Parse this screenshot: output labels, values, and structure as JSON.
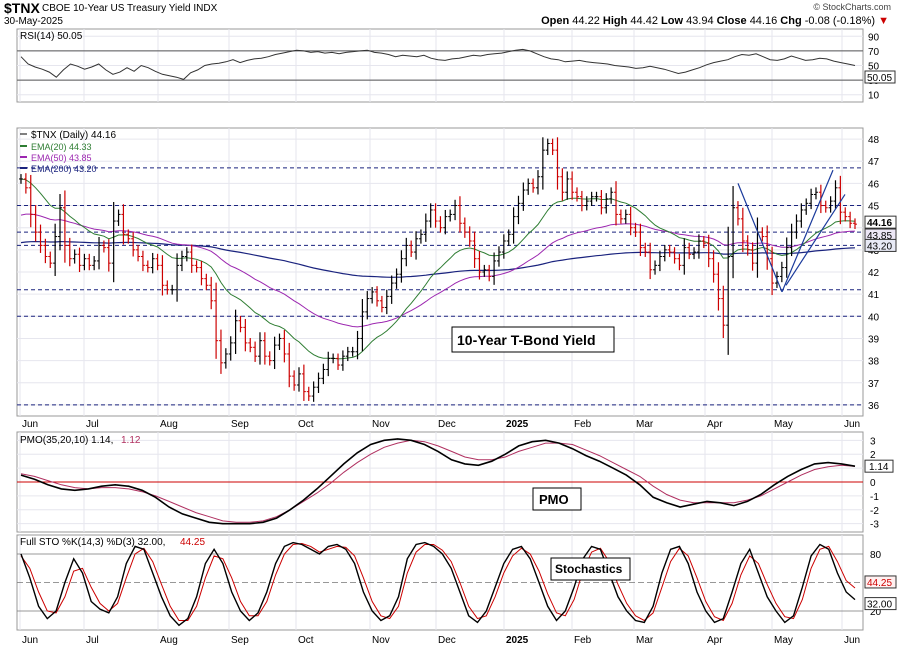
{
  "header": {
    "symbol": "$TNX",
    "name": "CBOE 10-Year US Treasury Yield INDX",
    "date": "30-May-2025",
    "credit": "© StockCharts.com",
    "open_label": "Open",
    "open": "44.22",
    "high_label": "High",
    "high": "44.42",
    "low_label": "Low",
    "low": "43.94",
    "close_label": "Close",
    "close": "44.16",
    "chg_label": "Chg",
    "chg": "-0.08 (-0.18%)",
    "chg_arrow": "▼"
  },
  "colors": {
    "background": "#ffffff",
    "grid": "#e6e6ee",
    "panel_border": "#999999",
    "up_bar": "#000000",
    "down_bar": "#cc0000",
    "ema20": "#2e7d32",
    "ema50": "#9c27b0",
    "ema200": "#1a237e",
    "trendline": "#1a3a9c",
    "pmo_signal": "#b03060",
    "zero_line": "#cc0000"
  },
  "chart_data": [
    {
      "type": "line",
      "panel": "rsi",
      "title": "RSI(14) 50.05",
      "y_ticks": [
        "90",
        "70",
        "50",
        "30",
        "10"
      ],
      "ylim": [
        0,
        100
      ],
      "reference_lines": [
        70,
        30
      ],
      "last_value_label": "50.05",
      "series": [
        {
          "name": "RSI(14)",
          "values": [
            62,
            52,
            48,
            45,
            41,
            34,
            44,
            52,
            49,
            45,
            48,
            52,
            44,
            38,
            41,
            47,
            42,
            50,
            47,
            42,
            38,
            36,
            34,
            31,
            40,
            44,
            50,
            52,
            53,
            55,
            58,
            54,
            57,
            59,
            60,
            62,
            65,
            67,
            69,
            71,
            70,
            68,
            69,
            67,
            68,
            66,
            68,
            69,
            70,
            71,
            68,
            67,
            65,
            62,
            64,
            63,
            62,
            64,
            60,
            58,
            57,
            59,
            60,
            62,
            64,
            63,
            65,
            66,
            67,
            69,
            71,
            72,
            70,
            66,
            62,
            59,
            58,
            55,
            56,
            57,
            55,
            54,
            53,
            52,
            50,
            49,
            48,
            46,
            47,
            49,
            47,
            45,
            42,
            39,
            41,
            44,
            47,
            51,
            54,
            56,
            58,
            62,
            65,
            64,
            66,
            62,
            58,
            57,
            59,
            63,
            60,
            57,
            58,
            60,
            59,
            56,
            54,
            52,
            50
          ]
        }
      ]
    },
    {
      "type": "bar",
      "panel": "price",
      "title": "$TNX (Daily) 44.16",
      "annotation": "10-Year T-Bond Yield",
      "x_tick_labels": [
        "Jun",
        "Jul",
        "Aug",
        "Sep",
        "Oct",
        "Nov",
        "Dec",
        "2025",
        "Feb",
        "Mar",
        "Apr",
        "May",
        "Jun"
      ],
      "y_ticks": [
        "48",
        "47",
        "46",
        "45",
        "44",
        "43",
        "42",
        "41",
        "40",
        "39",
        "38",
        "37",
        "36"
      ],
      "ylim": [
        35.5,
        48.5
      ],
      "horizontal_levels": [
        36,
        40,
        41.2,
        43.2,
        43.8,
        45,
        46.7
      ],
      "last_value_labels": [
        "44.16",
        "43.85",
        "43.20"
      ],
      "grid": true,
      "close": [
        46.2,
        45.8,
        44.6,
        43.8,
        43.2,
        42.7,
        42.4,
        43.6,
        44.9,
        43.2,
        42.6,
        42.8,
        42.3,
        42.6,
        42.3,
        42.5,
        43.2,
        43.1,
        42.4,
        44.3,
        44.6,
        43.7,
        43.5,
        43.0,
        42.7,
        42.3,
        42.2,
        42.6,
        42.3,
        41.4,
        41.2,
        41.2,
        42.3,
        42.7,
        42.9,
        42.3,
        42.2,
        41.7,
        41.4,
        40.7,
        38.9,
        37.9,
        38.3,
        38.8,
        39.8,
        39.5,
        38.8,
        38.6,
        38.2,
        38.9,
        38.2,
        38.0,
        38.7,
        39.0,
        38.3,
        37.3,
        36.9,
        37.4,
        36.6,
        36.4,
        36.8,
        37.2,
        37.6,
        38.1,
        38.1,
        37.8,
        38.2,
        38.4,
        38.4,
        39.0,
        40.2,
        40.8,
        41.1,
        40.7,
        40.4,
        40.9,
        41.5,
        41.9,
        42.6,
        43.2,
        42.9,
        43.5,
        43.7,
        44.3,
        44.8,
        44.3,
        44.0,
        44.5,
        44.6,
        45.0,
        44.2,
        43.8,
        43.4,
        42.6,
        42.0,
        42.1,
        41.8,
        42.5,
        42.9,
        43.4,
        43.7,
        44.5,
        45.1,
        45.7,
        46.0,
        45.8,
        46.3,
        47.5,
        47.8,
        47.5,
        46.3,
        45.6,
        46.2,
        45.6,
        45.4,
        45.0,
        45.2,
        45.4,
        45.4,
        44.9,
        45.3,
        45.6,
        44.6,
        44.4,
        44.6,
        44.0,
        43.8,
        43.1,
        42.9,
        42.1,
        42.3,
        42.7,
        43.0,
        42.9,
        42.6,
        42.3,
        43.1,
        42.8,
        42.9,
        43.4,
        43.3,
        42.6,
        41.9,
        40.8,
        39.6,
        42.7,
        44.9,
        44.4,
        43.4,
        43.0,
        42.4,
        43.8,
        43.6,
        42.6,
        41.5,
        41.8,
        42.2,
        43.1,
        43.8,
        44.3,
        44.8,
        45.1,
        45.5,
        45.6,
        45.0,
        44.9,
        45.2,
        45.8,
        44.7,
        44.5,
        44.2,
        44.16
      ]
    },
    {
      "type": "line",
      "panel": "pmo",
      "title": "PMO(35,20,10) 1.14, 1.12",
      "box_label": "PMO",
      "y_ticks": [
        "3",
        "2",
        "1",
        "0",
        "-1",
        "-2",
        "-3"
      ],
      "ylim": [
        -3.6,
        3.6
      ],
      "reference_lines": [
        0
      ],
      "last_value_label": "1.14",
      "series": [
        {
          "name": "PMO",
          "values": [
            0.5,
            0.2,
            -0.2,
            -0.5,
            -0.6,
            -0.5,
            -0.3,
            -0.2,
            -0.3,
            -0.6,
            -1.1,
            -1.8,
            -2.3,
            -2.6,
            -2.9,
            -3.0,
            -3.0,
            -3.0,
            -2.9,
            -2.6,
            -2.0,
            -1.3,
            -0.5,
            0.4,
            1.3,
            2.1,
            2.7,
            3.0,
            3.1,
            3.0,
            2.7,
            2.2,
            1.6,
            1.3,
            1.2,
            1.5,
            2.0,
            2.6,
            2.9,
            3.0,
            2.8,
            2.4,
            1.9,
            1.5,
            1.0,
            0.5,
            -0.2,
            -1.1,
            -1.5,
            -1.8,
            -1.6,
            -1.4,
            -1.5,
            -1.7,
            -1.4,
            -0.9,
            -0.2,
            0.4,
            0.9,
            1.3,
            1.4,
            1.3,
            1.14
          ]
        },
        {
          "name": "Signal",
          "values": [
            0.6,
            0.4,
            0.1,
            -0.2,
            -0.4,
            -0.5,
            -0.4,
            -0.4,
            -0.5,
            -0.7,
            -1.0,
            -1.4,
            -1.8,
            -2.2,
            -2.5,
            -2.8,
            -2.9,
            -2.9,
            -2.8,
            -2.5,
            -2.0,
            -1.4,
            -0.8,
            -0.1,
            0.7,
            1.4,
            2.0,
            2.5,
            2.8,
            3.0,
            2.9,
            2.6,
            2.2,
            1.8,
            1.6,
            1.6,
            1.8,
            2.2,
            2.5,
            2.8,
            2.8,
            2.7,
            2.3,
            1.9,
            1.4,
            0.9,
            0.4,
            -0.3,
            -0.9,
            -1.3,
            -1.5,
            -1.5,
            -1.5,
            -1.5,
            -1.3,
            -1.0,
            -0.5,
            0.0,
            0.5,
            0.9,
            1.1,
            1.2,
            1.12
          ]
        }
      ]
    },
    {
      "type": "line",
      "panel": "stochastics",
      "title": "Full STO %K(14,3) %D(3) 32.00, 44.25",
      "box_label": "Stochastics",
      "y_ticks": [
        "80",
        "50",
        "20"
      ],
      "ylim": [
        0,
        100
      ],
      "reference_lines": [
        80,
        50,
        20
      ],
      "last_value_labels": [
        "44.25",
        "32.00"
      ],
      "series": [
        {
          "name": "%K",
          "values": [
            80,
            55,
            25,
            12,
            20,
            50,
            75,
            60,
            30,
            22,
            18,
            35,
            70,
            88,
            85,
            60,
            35,
            15,
            5,
            12,
            35,
            70,
            85,
            70,
            40,
            20,
            10,
            18,
            40,
            70,
            88,
            92,
            90,
            85,
            80,
            88,
            90,
            85,
            70,
            40,
            20,
            10,
            15,
            35,
            75,
            90,
            92,
            88,
            80,
            65,
            40,
            15,
            8,
            20,
            45,
            70,
            85,
            88,
            75,
            50,
            25,
            10,
            20,
            45,
            75,
            88,
            85,
            60,
            35,
            20,
            10,
            8,
            25,
            60,
            85,
            88,
            70,
            40,
            20,
            8,
            12,
            40,
            70,
            85,
            60,
            35,
            20,
            8,
            15,
            45,
            78,
            90,
            85,
            60,
            40,
            32
          ]
        },
        {
          "name": "%D",
          "values": [
            78,
            65,
            40,
            20,
            18,
            35,
            62,
            65,
            45,
            28,
            20,
            28,
            55,
            80,
            86,
            72,
            48,
            25,
            10,
            10,
            25,
            55,
            78,
            75,
            55,
            30,
            15,
            15,
            30,
            58,
            80,
            90,
            91,
            88,
            82,
            85,
            88,
            87,
            78,
            55,
            30,
            15,
            12,
            25,
            60,
            82,
            90,
            90,
            84,
            72,
            50,
            25,
            12,
            15,
            35,
            60,
            78,
            86,
            80,
            62,
            38,
            18,
            15,
            32,
            62,
            82,
            86,
            72,
            48,
            28,
            15,
            10,
            18,
            45,
            72,
            86,
            78,
            55,
            30,
            14,
            10,
            28,
            58,
            78,
            70,
            48,
            28,
            14,
            12,
            32,
            65,
            85,
            88,
            72,
            52,
            44.25
          ]
        }
      ]
    }
  ]
}
